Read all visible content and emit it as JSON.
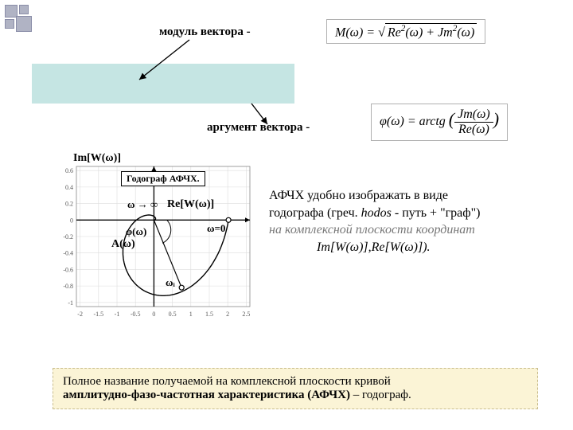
{
  "corner": {
    "color": "#b0b3c4",
    "border": "#8a8da8"
  },
  "label_modulus": "модуль вектора -",
  "label_argument": "аргумент вектора -",
  "teal_band_color": "#c5e5e3",
  "formula1_html": "<i>M</i>(<i>ω</i>) = √<span class=\"sqrt\">Re<sup>2</sup>(<i>ω</i>) + <i>Jm</i><sup>2</sup>(<i>ω</i>)</span>",
  "formula2_html": "<i>φ</i>(<i>ω</i>) = <i>arctg</i> <span style=\"font-size:22px;\">(</span><span class=\"frac\"><span class=\"num\"><i>Jm</i>(<i>ω</i>)</span><span class=\"den\">Re(<i>ω</i>)</span></span><span style=\"font-size:22px;\">)</span>",
  "chart": {
    "title_box": "Годограф АФЧХ.",
    "y_axis_label": "Im[W(ω)]",
    "x_axis_label": "Re[W(ω)]",
    "phi_label": "φ(ω)",
    "a_label": "A(ω)",
    "omega_to_inf": "ω → ∞",
    "omega_zero": "ω=0",
    "omega_i": "ωᵢ",
    "xticks": [
      -2,
      -1.5,
      -1,
      -0.5,
      0,
      0.5,
      1,
      1.5,
      2,
      2.5
    ],
    "yticks": [
      -1,
      -0.8,
      -0.6,
      -0.4,
      -0.2,
      0,
      0.2,
      0.4,
      0.6
    ],
    "xlim": [
      -2.1,
      2.6
    ],
    "ylim": [
      -1.05,
      0.65
    ],
    "grid": "#dcdcdc",
    "axis": "#000000",
    "curve": "#000000",
    "points": [
      [
        2.02,
        0
      ],
      [
        0.75,
        -0.82
      ]
    ],
    "point_r": 3
  },
  "side": {
    "line1": "АФЧХ удобно изображать в виде",
    "line2_pre": "годографа (греч. ",
    "line2_i": "hodos",
    "line2_post": " - путь + \"граф\")",
    "line3": "на комплексной плоскости координат",
    "line4": "Im[W(ω)],Re[W(ω)])."
  },
  "bottom": {
    "t1": "Полное название получаемой на комплексной плоскости кривой ",
    "t2": "амплитудно-фазо-частотная характеристика (АФЧХ)",
    "t3": " – годограф.",
    "bg": "#fbf4d6",
    "border": "#c9bd8e"
  }
}
